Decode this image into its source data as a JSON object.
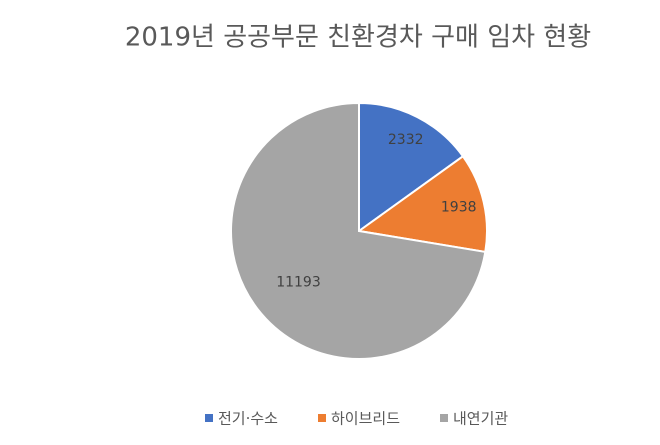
{
  "chart_data": {
    "type": "pie",
    "title": "2019년 공공부문 친환경차 구매 임차 현황",
    "categories": [
      "전기·수소",
      "하이브리드",
      "내연기관"
    ],
    "values": [
      2332,
      1938,
      11193
    ],
    "colors": [
      "#4472c4",
      "#ed7d31",
      "#a5a5a5"
    ],
    "legend": "bottom"
  }
}
